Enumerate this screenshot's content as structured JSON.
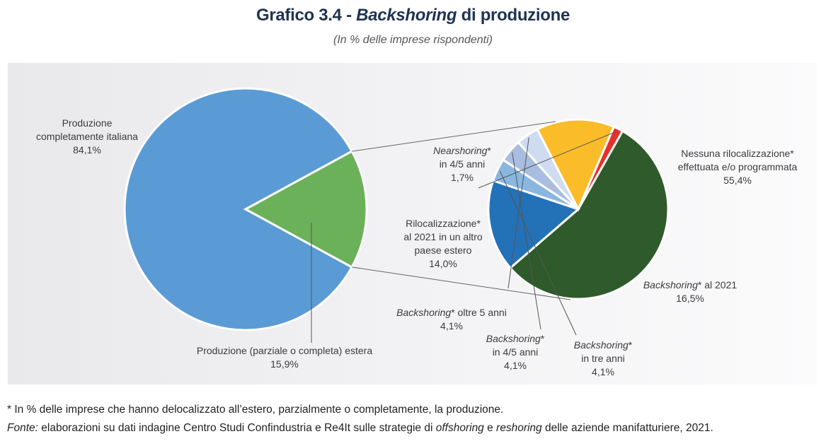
{
  "title": {
    "prefix": "Grafico 3.4 - ",
    "emphasis": "Backshoring",
    "suffix": " di produzione"
  },
  "subtitle": "(In % delle imprese rispondenti)",
  "chart_data": {
    "type": "pie",
    "main_pie": {
      "slices": [
        {
          "key": "italiana",
          "label_lines": [
            "Produzione",
            "completamente italiana"
          ],
          "value": 84.1,
          "value_label": "84,1%",
          "color": "#5b9bd5"
        },
        {
          "key": "estera",
          "label_lines": [
            "Produzione (parziale o completa) estera"
          ],
          "value": 15.9,
          "value_label": "15,9%",
          "color": "#6ab15a"
        }
      ]
    },
    "breakdown_pie": {
      "of": "Produzione (parziale o completa) estera",
      "slices": [
        {
          "key": "nessuna",
          "label_italic": "",
          "label_rest": "Nessuna rilocalizzazione*",
          "label_line2": "effettuata e/o programmata",
          "label_line3": "",
          "value": 55.4,
          "value_label": "55,4%",
          "color": "#2f5a2b"
        },
        {
          "key": "bk2021",
          "label_italic": "Backshoring",
          "label_rest": "* al 2021",
          "label_line2": "",
          "label_line3": "",
          "value": 16.5,
          "value_label": "16,5%",
          "color": "#2372b8"
        },
        {
          "key": "bk3",
          "label_italic": "Backshoring",
          "label_rest": "*",
          "label_line2": "in tre anni",
          "label_line3": "",
          "value": 4.1,
          "value_label": "4,1%",
          "color": "#8ab7e0"
        },
        {
          "key": "bk45",
          "label_italic": "Backshoring",
          "label_rest": "*",
          "label_line2": "in 4/5 anni",
          "label_line3": "",
          "value": 4.1,
          "value_label": "4,1%",
          "color": "#a8bde0"
        },
        {
          "key": "bk5",
          "label_italic": "Backshoring",
          "label_rest": "* oltre 5 anni",
          "label_line2": "",
          "label_line3": "",
          "value": 4.1,
          "value_label": "4,1%",
          "color": "#cfdcf0"
        },
        {
          "key": "riloc",
          "label_italic": "",
          "label_rest": "Rilocalizzazione*",
          "label_line2": "al 2021 in un altro",
          "label_line3": "paese estero",
          "value": 14.0,
          "value_label": "14,0%",
          "color": "#fbbc2a"
        },
        {
          "key": "near",
          "label_italic": "Nearshoring",
          "label_rest": "*",
          "label_line2": "in 4/5 anni",
          "label_line3": "",
          "value": 1.7,
          "value_label": "1,7%",
          "color": "#e8302a"
        }
      ]
    },
    "legend": "none"
  },
  "footnotes": {
    "note": "* In % delle imprese che hanno delocalizzato all’estero, parzialmente o completamente, la produzione.",
    "source_label": "Fonte:",
    "source_a": " elaborazioni su dati indagine Centro Studi Confindustria e Re4It sulle strategie di ",
    "source_em1": "offshoring",
    "source_b": " e ",
    "source_em2": "reshoring",
    "source_c": " delle aziende manifatturiere, 2021."
  }
}
